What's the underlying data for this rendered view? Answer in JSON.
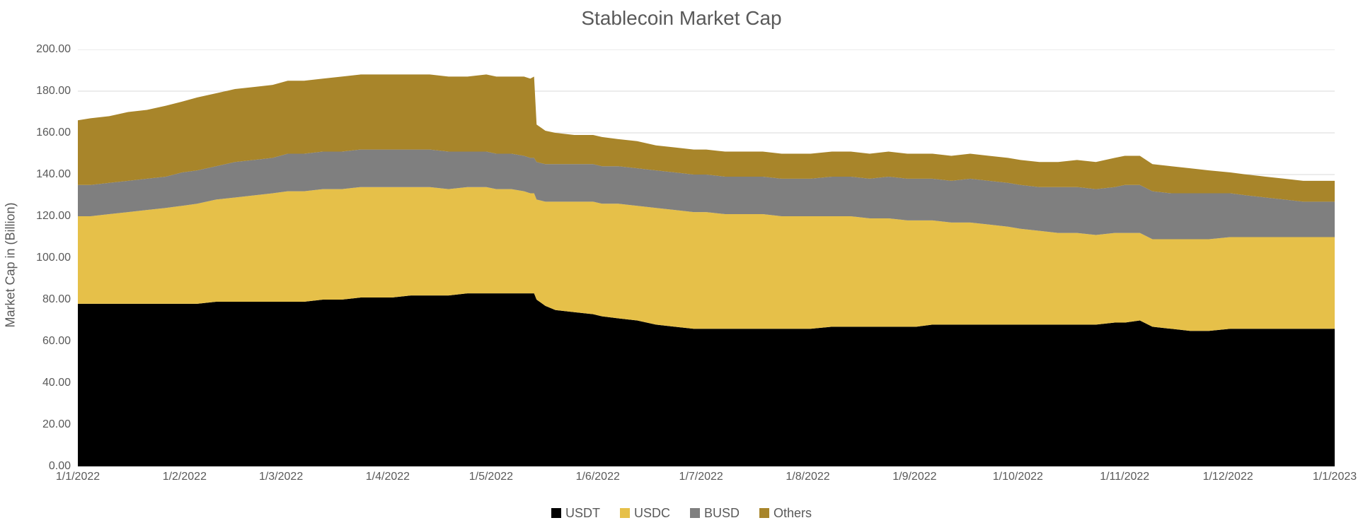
{
  "chart": {
    "type": "area-stacked",
    "title": "Stablecoin Market Cap",
    "title_fontsize": 28,
    "title_color": "#595959",
    "background_color": "#ffffff",
    "grid_color": "#d9d9d9",
    "ylabel": "Market Cap in (Billion)",
    "label_fontsize": 18,
    "tick_fontsize": 16,
    "tick_color": "#595959",
    "ylim": [
      0,
      200
    ],
    "ytick_step": 20,
    "xticks": [
      "1/1/2022",
      "1/2/2022",
      "1/3/2022",
      "1/4/2022",
      "1/5/2022",
      "1/6/2022",
      "1/7/2022",
      "1/8/2022",
      "1/9/2022",
      "1/10/2022",
      "1/11/2022",
      "1/12/2022",
      "1/1/2023"
    ],
    "months_days": [
      31,
      28,
      31,
      30,
      31,
      30,
      31,
      31,
      30,
      31,
      30,
      31
    ],
    "series": [
      {
        "name": "USDT",
        "color": "#000000"
      },
      {
        "name": "USDC",
        "color": "#e6c049"
      },
      {
        "name": "BUSD",
        "color": "#7f7f7f"
      },
      {
        "name": "Others",
        "color": "#a8852a"
      }
    ],
    "legend_labels": [
      "USDT",
      "USDC",
      "BUSD",
      "Others"
    ],
    "legend_position": "bottom-center",
    "data": [
      {
        "x": 0.0,
        "USDT": 78,
        "USDC": 42,
        "BUSD": 15,
        "Others": 31
      },
      {
        "x": 0.01,
        "USDT": 78,
        "USDC": 42,
        "BUSD": 15,
        "Others": 32
      },
      {
        "x": 0.025,
        "USDT": 78,
        "USDC": 43,
        "BUSD": 15,
        "Others": 32
      },
      {
        "x": 0.04,
        "USDT": 78,
        "USDC": 44,
        "BUSD": 15,
        "Others": 33
      },
      {
        "x": 0.055,
        "USDT": 78,
        "USDC": 45,
        "BUSD": 15,
        "Others": 33
      },
      {
        "x": 0.07,
        "USDT": 78,
        "USDC": 46,
        "BUSD": 15,
        "Others": 34
      },
      {
        "x": 0.083,
        "USDT": 78,
        "USDC": 47,
        "BUSD": 16,
        "Others": 34
      },
      {
        "x": 0.095,
        "USDT": 78,
        "USDC": 48,
        "BUSD": 16,
        "Others": 35
      },
      {
        "x": 0.11,
        "USDT": 79,
        "USDC": 49,
        "BUSD": 16,
        "Others": 35
      },
      {
        "x": 0.125,
        "USDT": 79,
        "USDC": 50,
        "BUSD": 17,
        "Others": 35
      },
      {
        "x": 0.14,
        "USDT": 79,
        "USDC": 51,
        "BUSD": 17,
        "Others": 35
      },
      {
        "x": 0.155,
        "USDT": 79,
        "USDC": 52,
        "BUSD": 17,
        "Others": 35
      },
      {
        "x": 0.167,
        "USDT": 79,
        "USDC": 53,
        "BUSD": 18,
        "Others": 35
      },
      {
        "x": 0.18,
        "USDT": 79,
        "USDC": 53,
        "BUSD": 18,
        "Others": 35
      },
      {
        "x": 0.195,
        "USDT": 80,
        "USDC": 53,
        "BUSD": 18,
        "Others": 35
      },
      {
        "x": 0.21,
        "USDT": 80,
        "USDC": 53,
        "BUSD": 18,
        "Others": 36
      },
      {
        "x": 0.225,
        "USDT": 81,
        "USDC": 53,
        "BUSD": 18,
        "Others": 36
      },
      {
        "x": 0.24,
        "USDT": 81,
        "USDC": 53,
        "BUSD": 18,
        "Others": 36
      },
      {
        "x": 0.25,
        "USDT": 81,
        "USDC": 53,
        "BUSD": 18,
        "Others": 36
      },
      {
        "x": 0.265,
        "USDT": 82,
        "USDC": 52,
        "BUSD": 18,
        "Others": 36
      },
      {
        "x": 0.28,
        "USDT": 82,
        "USDC": 52,
        "BUSD": 18,
        "Others": 36
      },
      {
        "x": 0.295,
        "USDT": 82,
        "USDC": 51,
        "BUSD": 18,
        "Others": 36
      },
      {
        "x": 0.31,
        "USDT": 83,
        "USDC": 51,
        "BUSD": 17,
        "Others": 36
      },
      {
        "x": 0.325,
        "USDT": 83,
        "USDC": 51,
        "BUSD": 17,
        "Others": 37
      },
      {
        "x": 0.333,
        "USDT": 83,
        "USDC": 50,
        "BUSD": 17,
        "Others": 37
      },
      {
        "x": 0.345,
        "USDT": 83,
        "USDC": 50,
        "BUSD": 17,
        "Others": 37
      },
      {
        "x": 0.355,
        "USDT": 83,
        "USDC": 49,
        "BUSD": 17,
        "Others": 38
      },
      {
        "x": 0.36,
        "USDT": 83,
        "USDC": 48,
        "BUSD": 17,
        "Others": 38
      },
      {
        "x": 0.363,
        "USDT": 83,
        "USDC": 48,
        "BUSD": 17,
        "Others": 39
      },
      {
        "x": 0.365,
        "USDT": 80,
        "USDC": 48,
        "BUSD": 18,
        "Others": 18
      },
      {
        "x": 0.372,
        "USDT": 77,
        "USDC": 50,
        "BUSD": 18,
        "Others": 16
      },
      {
        "x": 0.38,
        "USDT": 75,
        "USDC": 52,
        "BUSD": 18,
        "Others": 15
      },
      {
        "x": 0.395,
        "USDT": 74,
        "USDC": 53,
        "BUSD": 18,
        "Others": 14
      },
      {
        "x": 0.41,
        "USDT": 73,
        "USDC": 54,
        "BUSD": 18,
        "Others": 14
      },
      {
        "x": 0.417,
        "USDT": 72,
        "USDC": 54,
        "BUSD": 18,
        "Others": 14
      },
      {
        "x": 0.43,
        "USDT": 71,
        "USDC": 55,
        "BUSD": 18,
        "Others": 13
      },
      {
        "x": 0.445,
        "USDT": 70,
        "USDC": 55,
        "BUSD": 18,
        "Others": 13
      },
      {
        "x": 0.46,
        "USDT": 68,
        "USDC": 56,
        "BUSD": 18,
        "Others": 12
      },
      {
        "x": 0.475,
        "USDT": 67,
        "USDC": 56,
        "BUSD": 18,
        "Others": 12
      },
      {
        "x": 0.49,
        "USDT": 66,
        "USDC": 56,
        "BUSD": 18,
        "Others": 12
      },
      {
        "x": 0.5,
        "USDT": 66,
        "USDC": 56,
        "BUSD": 18,
        "Others": 12
      },
      {
        "x": 0.515,
        "USDT": 66,
        "USDC": 55,
        "BUSD": 18,
        "Others": 12
      },
      {
        "x": 0.53,
        "USDT": 66,
        "USDC": 55,
        "BUSD": 18,
        "Others": 12
      },
      {
        "x": 0.545,
        "USDT": 66,
        "USDC": 55,
        "BUSD": 18,
        "Others": 12
      },
      {
        "x": 0.56,
        "USDT": 66,
        "USDC": 54,
        "BUSD": 18,
        "Others": 12
      },
      {
        "x": 0.575,
        "USDT": 66,
        "USDC": 54,
        "BUSD": 18,
        "Others": 12
      },
      {
        "x": 0.583,
        "USDT": 66,
        "USDC": 54,
        "BUSD": 18,
        "Others": 12
      },
      {
        "x": 0.6,
        "USDT": 67,
        "USDC": 53,
        "BUSD": 19,
        "Others": 12
      },
      {
        "x": 0.615,
        "USDT": 67,
        "USDC": 53,
        "BUSD": 19,
        "Others": 12
      },
      {
        "x": 0.63,
        "USDT": 67,
        "USDC": 52,
        "BUSD": 19,
        "Others": 12
      },
      {
        "x": 0.645,
        "USDT": 67,
        "USDC": 52,
        "BUSD": 20,
        "Others": 12
      },
      {
        "x": 0.66,
        "USDT": 67,
        "USDC": 51,
        "BUSD": 20,
        "Others": 12
      },
      {
        "x": 0.667,
        "USDT": 67,
        "USDC": 51,
        "BUSD": 20,
        "Others": 12
      },
      {
        "x": 0.68,
        "USDT": 68,
        "USDC": 50,
        "BUSD": 20,
        "Others": 12
      },
      {
        "x": 0.695,
        "USDT": 68,
        "USDC": 49,
        "BUSD": 20,
        "Others": 12
      },
      {
        "x": 0.71,
        "USDT": 68,
        "USDC": 49,
        "BUSD": 21,
        "Others": 12
      },
      {
        "x": 0.725,
        "USDT": 68,
        "USDC": 48,
        "BUSD": 21,
        "Others": 12
      },
      {
        "x": 0.74,
        "USDT": 68,
        "USDC": 47,
        "BUSD": 21,
        "Others": 12
      },
      {
        "x": 0.75,
        "USDT": 68,
        "USDC": 46,
        "BUSD": 21,
        "Others": 12
      },
      {
        "x": 0.765,
        "USDT": 68,
        "USDC": 45,
        "BUSD": 21,
        "Others": 12
      },
      {
        "x": 0.78,
        "USDT": 68,
        "USDC": 44,
        "BUSD": 22,
        "Others": 12
      },
      {
        "x": 0.795,
        "USDT": 68,
        "USDC": 44,
        "BUSD": 22,
        "Others": 13
      },
      {
        "x": 0.81,
        "USDT": 68,
        "USDC": 43,
        "BUSD": 22,
        "Others": 13
      },
      {
        "x": 0.825,
        "USDT": 69,
        "USDC": 43,
        "BUSD": 22,
        "Others": 14
      },
      {
        "x": 0.833,
        "USDT": 69,
        "USDC": 43,
        "BUSD": 23,
        "Others": 14
      },
      {
        "x": 0.845,
        "USDT": 70,
        "USDC": 42,
        "BUSD": 23,
        "Others": 14
      },
      {
        "x": 0.855,
        "USDT": 67,
        "USDC": 42,
        "BUSD": 23,
        "Others": 13
      },
      {
        "x": 0.87,
        "USDT": 66,
        "USDC": 43,
        "BUSD": 22,
        "Others": 13
      },
      {
        "x": 0.885,
        "USDT": 65,
        "USDC": 44,
        "BUSD": 22,
        "Others": 12
      },
      {
        "x": 0.9,
        "USDT": 65,
        "USDC": 44,
        "BUSD": 22,
        "Others": 11
      },
      {
        "x": 0.917,
        "USDT": 66,
        "USDC": 44,
        "BUSD": 21,
        "Others": 10
      },
      {
        "x": 0.93,
        "USDT": 66,
        "USDC": 44,
        "BUSD": 20,
        "Others": 10
      },
      {
        "x": 0.945,
        "USDT": 66,
        "USDC": 44,
        "BUSD": 19,
        "Others": 10
      },
      {
        "x": 0.96,
        "USDT": 66,
        "USDC": 44,
        "BUSD": 18,
        "Others": 10
      },
      {
        "x": 0.975,
        "USDT": 66,
        "USDC": 44,
        "BUSD": 17,
        "Others": 10
      },
      {
        "x": 0.99,
        "USDT": 66,
        "USDC": 44,
        "BUSD": 17,
        "Others": 10
      },
      {
        "x": 1.0,
        "USDT": 66,
        "USDC": 44,
        "BUSD": 17,
        "Others": 10
      }
    ]
  }
}
